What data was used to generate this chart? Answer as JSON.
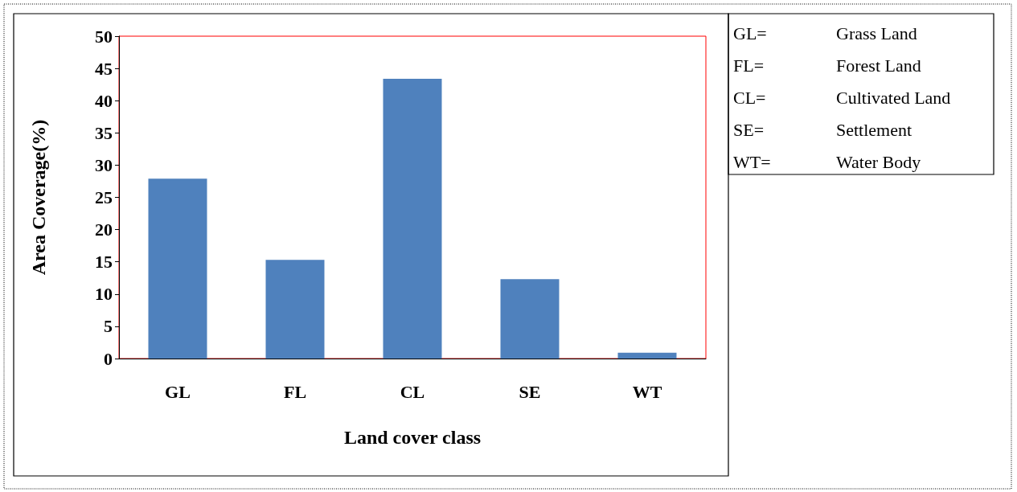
{
  "chart_data": {
    "type": "bar",
    "xlabel": "Land cover class",
    "ylabel": "Area Coverage(%)",
    "categories": [
      "GL",
      "FL",
      "CL",
      "SE",
      "WT"
    ],
    "values": [
      27.9,
      15.3,
      43.4,
      12.3,
      0.9
    ],
    "color": "#4f81bd",
    "ylim": [
      0,
      50
    ],
    "yticks": [
      0,
      5,
      10,
      15,
      20,
      25,
      30,
      35,
      40,
      45,
      50
    ],
    "grid": false,
    "annotations": [
      "GL=",
      "Grass Land",
      "FL=",
      "Forest Land",
      "CL=",
      "Cultivated Land",
      "SE=",
      "Settlement",
      "WT=",
      "Water Body"
    ]
  }
}
